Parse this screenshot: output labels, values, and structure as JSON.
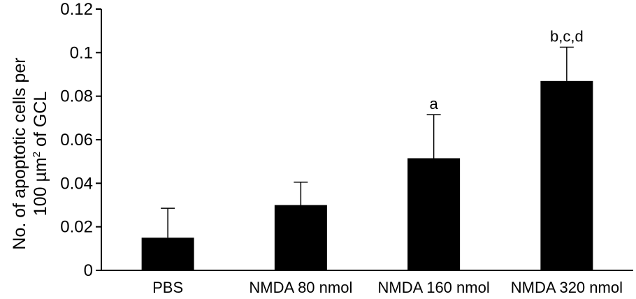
{
  "chart_data": {
    "type": "bar",
    "categories": [
      "PBS",
      "NMDA 80 nmol",
      "NMDA 160 nmol",
      "NMDA 320 nmol"
    ],
    "values": [
      0.015,
      0.03,
      0.0515,
      0.087
    ],
    "error_upper": [
      0.0285,
      0.0405,
      0.0715,
      0.1025
    ],
    "annotations": [
      "",
      "",
      "a",
      "b,c,d"
    ],
    "ylabel_line1": "No. of apoptotic cells per",
    "ylabel_line2_pre": "100 µm",
    "ylabel_sup": "2",
    "ylabel_line2_post": " of GCL",
    "ylim": [
      0,
      0.12
    ],
    "yticks": [
      "0",
      "0.02",
      "0.04",
      "0.06",
      "0.08",
      "0.1",
      "0.12"
    ],
    "grid": false,
    "bar_color": "#000000"
  }
}
